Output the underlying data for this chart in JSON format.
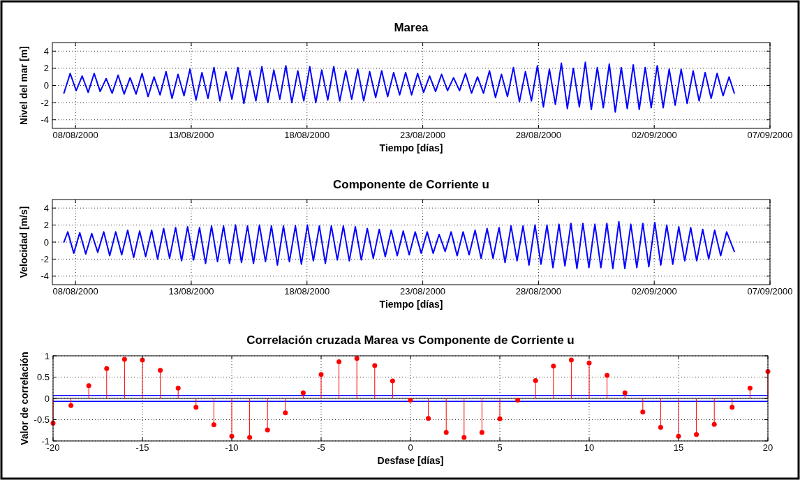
{
  "chart_data": [
    {
      "type": "line",
      "title": "Marea",
      "xlabel": "Tiempo [días]",
      "ylabel": "Nivel del mar [m]",
      "xlim": [
        "2000-08-07",
        "2000-09-07"
      ],
      "ylim": [
        -5,
        5
      ],
      "xticks": [
        {
          "value": "2000-08-08",
          "label": "08/08/2000"
        },
        {
          "value": "2000-08-13",
          "label": "13/08/2000"
        },
        {
          "value": "2000-08-18",
          "label": "18/08/2000"
        },
        {
          "value": "2000-08-23",
          "label": "23/08/2000"
        },
        {
          "value": "2000-08-28",
          "label": "28/08/2000"
        },
        {
          "value": "2000-09-02",
          "label": "02/09/2000"
        },
        {
          "value": "2000-09-07",
          "label": "07/09/2000"
        }
      ],
      "yticks": [
        -4,
        -2,
        0,
        2,
        4
      ],
      "grid": true,
      "series": [
        {
          "color": "#0000ff",
          "x": [
            "2000-08-07T12:00",
            "2000-08-07T18:30",
            "2000-08-08T00:43",
            "2000-08-08T06:55",
            "2000-08-08T13:08",
            "2000-08-08T19:20",
            "2000-08-09T01:33",
            "2000-08-09T07:46",
            "2000-08-09T13:58",
            "2000-08-09T20:11",
            "2000-08-10T02:23",
            "2000-08-10T08:36",
            "2000-08-10T14:49",
            "2000-08-10T21:01",
            "2000-08-11T03:14",
            "2000-08-11T09:26",
            "2000-08-11T15:39",
            "2000-08-11T21:52",
            "2000-08-12T04:04",
            "2000-08-12T10:17",
            "2000-08-12T16:29",
            "2000-08-12T22:42",
            "2000-08-13T04:55",
            "2000-08-13T11:07",
            "2000-08-13T17:20",
            "2000-08-13T23:32",
            "2000-08-14T05:45",
            "2000-08-14T11:58",
            "2000-08-14T18:10",
            "2000-08-15T00:23",
            "2000-08-15T06:35",
            "2000-08-15T12:48",
            "2000-08-15T19:01",
            "2000-08-16T01:13",
            "2000-08-16T07:26",
            "2000-08-16T13:38",
            "2000-08-16T19:51",
            "2000-08-17T02:04",
            "2000-08-17T08:16",
            "2000-08-17T14:29",
            "2000-08-17T20:41",
            "2000-08-18T02:54",
            "2000-08-18T09:07",
            "2000-08-18T15:19",
            "2000-08-18T21:32",
            "2000-08-19T03:44",
            "2000-08-19T09:57",
            "2000-08-19T16:10",
            "2000-08-19T22:22",
            "2000-08-20T04:35",
            "2000-08-20T10:47",
            "2000-08-20T17:00",
            "2000-08-20T23:13",
            "2000-08-21T05:25",
            "2000-08-21T11:38",
            "2000-08-21T17:50",
            "2000-08-22T00:03",
            "2000-08-22T06:16",
            "2000-08-22T12:28",
            "2000-08-22T18:41",
            "2000-08-23T00:53",
            "2000-08-23T07:06",
            "2000-08-23T13:19",
            "2000-08-23T19:31",
            "2000-08-24T01:44",
            "2000-08-24T07:56",
            "2000-08-24T14:09",
            "2000-08-24T20:22",
            "2000-08-25T02:34",
            "2000-08-25T08:47",
            "2000-08-25T14:59",
            "2000-08-25T21:12",
            "2000-08-26T03:25",
            "2000-08-26T09:37",
            "2000-08-26T15:50",
            "2000-08-26T22:02",
            "2000-08-27T04:15",
            "2000-08-27T10:28",
            "2000-08-27T16:40",
            "2000-08-27T22:53",
            "2000-08-28T05:05",
            "2000-08-28T11:18",
            "2000-08-28T17:31",
            "2000-08-28T23:43",
            "2000-08-29T05:56",
            "2000-08-29T12:08",
            "2000-08-29T18:21",
            "2000-08-30T00:34",
            "2000-08-30T06:46",
            "2000-08-30T12:59",
            "2000-08-30T19:11",
            "2000-08-31T01:24",
            "2000-08-31T07:37",
            "2000-08-31T13:49",
            "2000-08-31T20:02",
            "2000-09-01T02:14",
            "2000-09-01T08:27",
            "2000-09-01T14:40",
            "2000-09-01T20:52",
            "2000-09-02T03:05",
            "2000-09-02T09:17",
            "2000-09-02T15:30",
            "2000-09-02T21:43",
            "2000-09-03T03:55",
            "2000-09-03T10:08",
            "2000-09-03T16:20",
            "2000-09-03T22:33",
            "2000-09-04T04:46",
            "2000-09-04T10:58",
            "2000-09-04T17:11",
            "2000-09-04T23:23",
            "2000-09-05T05:36",
            "2000-09-05T11:00"
          ],
          "values": [
            -0.9,
            1.4,
            -0.6,
            1.1,
            -0.8,
            1.4,
            -0.7,
            0.8,
            -0.9,
            1.2,
            -1.0,
            0.9,
            -1.0,
            1.4,
            -1.3,
            1.0,
            -1.1,
            1.6,
            -1.5,
            1.3,
            -1.2,
            1.9,
            -1.7,
            1.5,
            -1.5,
            2.1,
            -1.8,
            1.6,
            -1.6,
            2.1,
            -2.1,
            1.7,
            -1.8,
            2.2,
            -2.0,
            1.8,
            -1.6,
            2.3,
            -2.0,
            1.7,
            -1.8,
            2.2,
            -2.0,
            1.8,
            -1.7,
            2.2,
            -1.8,
            1.7,
            -1.6,
            1.9,
            -1.8,
            1.6,
            -1.4,
            1.7,
            -1.3,
            1.5,
            -1.1,
            1.5,
            -1.1,
            1.4,
            -0.8,
            1.1,
            -0.7,
            1.3,
            -0.6,
            0.9,
            -0.6,
            1.4,
            -0.9,
            1.0,
            -0.9,
            1.7,
            -1.4,
            1.3,
            -1.3,
            2.1,
            -1.9,
            1.6,
            -1.8,
            2.3,
            -2.5,
            1.9,
            -2.2,
            2.6,
            -2.7,
            2.0,
            -2.5,
            2.7,
            -2.8,
            2.1,
            -2.6,
            2.5,
            -3.1,
            2.1,
            -2.7,
            2.4,
            -2.8,
            2.1,
            -2.6,
            2.3,
            -2.6,
            1.9,
            -2.3,
            1.9,
            -2.1,
            1.7,
            -1.8,
            1.5,
            -1.5,
            1.4,
            -1.2,
            1.0,
            -0.9
          ]
        }
      ]
    },
    {
      "type": "line",
      "title": "Componente de Corriente u",
      "xlabel": "Tiempo [días]",
      "ylabel": "Velocidad [m/s]",
      "xlim": [
        "2000-08-07",
        "2000-09-07"
      ],
      "ylim": [
        -5,
        5
      ],
      "xticks": [
        {
          "value": "2000-08-08",
          "label": "08/08/2000"
        },
        {
          "value": "2000-08-13",
          "label": "13/08/2000"
        },
        {
          "value": "2000-08-18",
          "label": "18/08/2000"
        },
        {
          "value": "2000-08-23",
          "label": "23/08/2000"
        },
        {
          "value": "2000-08-28",
          "label": "28/08/2000"
        },
        {
          "value": "2000-09-02",
          "label": "02/09/2000"
        },
        {
          "value": "2000-09-07",
          "label": "07/09/2000"
        }
      ],
      "yticks": [
        -4,
        -2,
        0,
        2,
        4
      ],
      "grid": true,
      "series": [
        {
          "color": "#0000ff",
          "x": [
            "2000-08-07T12:00",
            "2000-08-07T16:00",
            "2000-08-07T22:13",
            "2000-08-08T04:25",
            "2000-08-08T10:38",
            "2000-08-08T16:50",
            "2000-08-08T23:03",
            "2000-08-09T05:16",
            "2000-08-09T11:28",
            "2000-08-09T17:41",
            "2000-08-09T23:53",
            "2000-08-10T06:06",
            "2000-08-10T12:19",
            "2000-08-10T18:31",
            "2000-08-11T00:44",
            "2000-08-11T06:56",
            "2000-08-11T13:09",
            "2000-08-11T19:22",
            "2000-08-12T01:34",
            "2000-08-12T07:47",
            "2000-08-12T13:59",
            "2000-08-12T20:12",
            "2000-08-13T02:25",
            "2000-08-13T08:37",
            "2000-08-13T14:50",
            "2000-08-13T21:02",
            "2000-08-14T03:15",
            "2000-08-14T09:28",
            "2000-08-14T15:40",
            "2000-08-14T21:53",
            "2000-08-15T04:05",
            "2000-08-15T10:18",
            "2000-08-15T16:31",
            "2000-08-15T22:43",
            "2000-08-16T04:56",
            "2000-08-16T11:08",
            "2000-08-16T17:21",
            "2000-08-16T23:34",
            "2000-08-17T05:46",
            "2000-08-17T11:59",
            "2000-08-17T18:11",
            "2000-08-18T00:24",
            "2000-08-18T06:37",
            "2000-08-18T12:49",
            "2000-08-18T19:02",
            "2000-08-19T01:14",
            "2000-08-19T07:27",
            "2000-08-19T13:40",
            "2000-08-19T19:52",
            "2000-08-20T02:05",
            "2000-08-20T08:17",
            "2000-08-20T14:30",
            "2000-08-20T20:43",
            "2000-08-21T02:55",
            "2000-08-21T09:08",
            "2000-08-21T15:20",
            "2000-08-21T21:33",
            "2000-08-22T03:46",
            "2000-08-22T09:58",
            "2000-08-22T16:11",
            "2000-08-22T22:23",
            "2000-08-23T04:36",
            "2000-08-23T10:49",
            "2000-08-23T17:01",
            "2000-08-23T23:14",
            "2000-08-24T05:26",
            "2000-08-24T11:39",
            "2000-08-24T17:52",
            "2000-08-25T00:04",
            "2000-08-25T06:17",
            "2000-08-25T12:29",
            "2000-08-25T18:42",
            "2000-08-26T00:55",
            "2000-08-26T07:07",
            "2000-08-26T13:20",
            "2000-08-26T19:32",
            "2000-08-27T01:45",
            "2000-08-27T07:58",
            "2000-08-27T14:10",
            "2000-08-27T20:23",
            "2000-08-28T02:35",
            "2000-08-28T08:48",
            "2000-08-28T15:01",
            "2000-08-28T21:13",
            "2000-08-29T03:26",
            "2000-08-29T09:38",
            "2000-08-29T15:51",
            "2000-08-29T22:04",
            "2000-08-30T04:16",
            "2000-08-30T10:29",
            "2000-08-30T16:41",
            "2000-08-30T22:54",
            "2000-08-31T05:07",
            "2000-08-31T11:19",
            "2000-08-31T17:32",
            "2000-08-31T23:44",
            "2000-09-01T05:57",
            "2000-09-01T12:10",
            "2000-09-01T18:22",
            "2000-09-02T00:35",
            "2000-09-02T06:47",
            "2000-09-02T13:00",
            "2000-09-02T19:13",
            "2000-09-03T01:25",
            "2000-09-03T07:38",
            "2000-09-03T13:50",
            "2000-09-03T20:03",
            "2000-09-04T02:16",
            "2000-09-04T08:28",
            "2000-09-04T14:41",
            "2000-09-04T20:53",
            "2000-09-05T03:06",
            "2000-09-05T11:00"
          ],
          "values": [
            0.0,
            1.2,
            -1.3,
            1.1,
            -1.4,
            1.0,
            -1.2,
            1.2,
            -1.6,
            1.2,
            -1.5,
            1.4,
            -1.8,
            1.3,
            -1.7,
            1.4,
            -2.0,
            1.6,
            -1.9,
            1.7,
            -2.2,
            1.8,
            -2.1,
            1.7,
            -2.5,
            1.9,
            -2.3,
            1.9,
            -2.5,
            2.0,
            -2.4,
            1.9,
            -2.5,
            2.0,
            -2.3,
            1.9,
            -2.7,
            1.9,
            -2.3,
            1.9,
            -2.6,
            2.0,
            -2.2,
            1.9,
            -2.5,
            1.9,
            -2.1,
            1.9,
            -2.2,
            1.8,
            -2.1,
            1.6,
            -1.9,
            1.5,
            -1.7,
            1.4,
            -1.6,
            1.3,
            -1.5,
            1.2,
            -1.3,
            1.2,
            -1.3,
            0.9,
            -1.1,
            1.2,
            -1.6,
            1.2,
            -1.5,
            1.4,
            -1.9,
            1.6,
            -1.9,
            1.7,
            -2.4,
            1.9,
            -2.2,
            1.9,
            -2.7,
            2.0,
            -2.6,
            2.0,
            -3.0,
            2.1,
            -2.8,
            2.2,
            -3.1,
            2.2,
            -3.0,
            2.1,
            -3.0,
            2.2,
            -3.1,
            2.4,
            -3.1,
            2.1,
            -3.0,
            2.2,
            -2.9,
            2.3,
            -2.7,
            2.0,
            -2.6,
            1.8,
            -2.2,
            1.7,
            -2.2,
            1.5,
            -2.0,
            1.4,
            -1.6,
            1.2,
            -1.1
          ]
        }
      ]
    },
    {
      "type": "lollipop",
      "title": "Correlación cruzada Marea vs Componente de Corriente u",
      "xlabel": "Desfase [días]",
      "ylabel": "Valor de correlación",
      "xlim": [
        -20,
        20
      ],
      "ylim": [
        -1,
        1
      ],
      "xticks": [
        -20,
        -15,
        -10,
        -5,
        0,
        5,
        10,
        15,
        20
      ],
      "yticks": [
        -1,
        -0.5,
        0,
        0.5,
        1
      ],
      "grid": true,
      "marker": "circle",
      "x": [
        -20,
        -19,
        -18,
        -17,
        -16,
        -15,
        -14,
        -13,
        -12,
        -11,
        -10,
        -9,
        -8,
        -7,
        -6,
        -5,
        -4,
        -3,
        -2,
        -1,
        0,
        1,
        2,
        3,
        4,
        5,
        6,
        7,
        8,
        9,
        10,
        11,
        12,
        13,
        14,
        15,
        16,
        17,
        18,
        19,
        20
      ],
      "series": [
        {
          "color": "#ff0000",
          "values": [
            -0.58,
            -0.17,
            0.3,
            0.7,
            0.92,
            0.9,
            0.66,
            0.24,
            -0.21,
            -0.62,
            -0.89,
            -0.92,
            -0.74,
            -0.34,
            0.13,
            0.56,
            0.86,
            0.94,
            0.77,
            0.41,
            -0.04,
            -0.47,
            -0.8,
            -0.92,
            -0.8,
            -0.48,
            -0.04,
            0.42,
            0.76,
            0.9,
            0.83,
            0.54,
            0.13,
            -0.32,
            -0.68,
            -0.89,
            -0.85,
            -0.61,
            -0.21,
            0.24,
            0.63
          ]
        }
      ],
      "ref_lines": [
        {
          "axis": "y",
          "value": 0.07,
          "color": "#0000ff"
        },
        {
          "axis": "y",
          "value": -0.07,
          "color": "#0000ff"
        }
      ]
    }
  ]
}
